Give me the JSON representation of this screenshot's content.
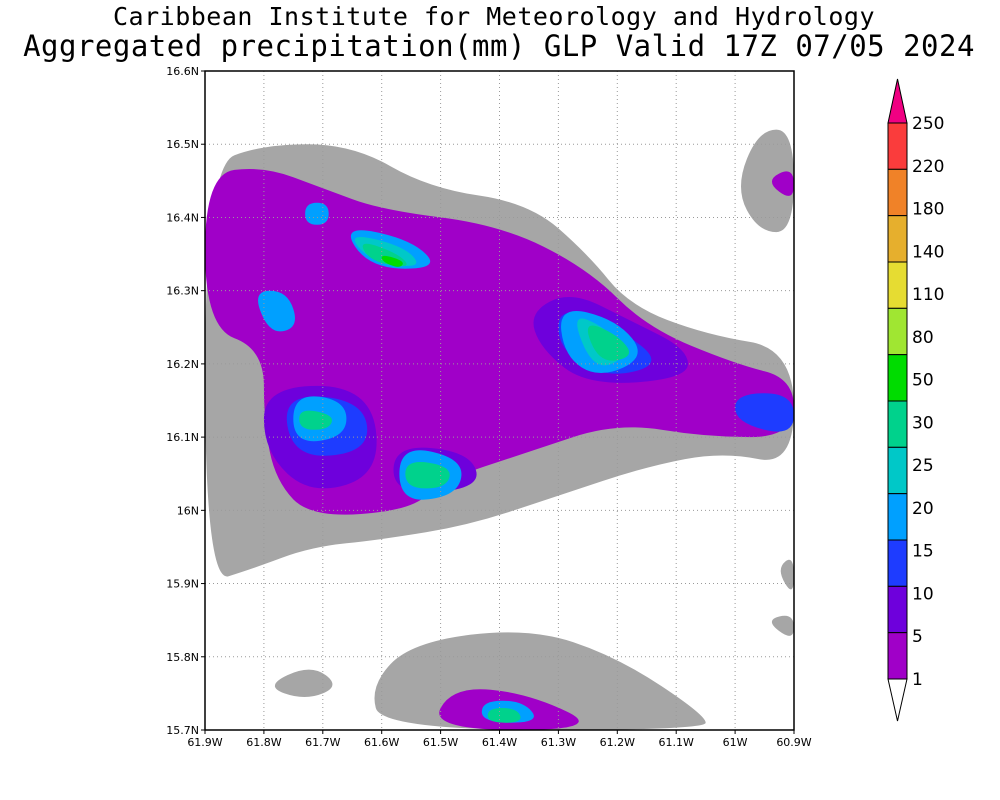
{
  "title": {
    "line1": "Caribbean Institute for Meteorology and Hydrology",
    "line2": "Aggregated precipitation(mm) GLP Valid 17Z 07/05 2024"
  },
  "map": {
    "lon_range": [
      -61.9,
      -60.9
    ],
    "lat_range": [
      15.7,
      16.6
    ],
    "x_tick_labels": [
      "61.9W",
      "61.8W",
      "61.7W",
      "61.6W",
      "61.5W",
      "61.4W",
      "61.3W",
      "61.2W",
      "61.1W",
      "61W",
      "60.9W"
    ],
    "y_tick_labels": [
      "15.7N",
      "15.8N",
      "15.9N",
      "16N",
      "16.1N",
      "16.2N",
      "16.3N",
      "16.4N",
      "16.5N",
      "16.6N"
    ],
    "grid": true
  },
  "colorbar": {
    "levels": [
      "1",
      "5",
      "10",
      "15",
      "20",
      "25",
      "30",
      "50",
      "80",
      "110",
      "140",
      "180",
      "220",
      "250"
    ],
    "colors": [
      "#a6a6a6",
      "#a000c8",
      "#6e00dc",
      "#1e3cff",
      "#00a0ff",
      "#00c8c8",
      "#00d28c",
      "#00dc00",
      "#a0e632",
      "#e6dc32",
      "#e6af2d",
      "#f08228",
      "#fa3c3c",
      "#f00082"
    ]
  },
  "precip_regions": [
    {
      "level": 1,
      "areas": [
        [
          [
            -61.9,
            16.47
          ],
          [
            -61.8,
            16.5
          ],
          [
            -61.65,
            16.5
          ],
          [
            -61.52,
            16.44
          ],
          [
            -61.35,
            16.42
          ],
          [
            -61.25,
            16.35
          ],
          [
            -61.18,
            16.28
          ],
          [
            -61.05,
            16.24
          ],
          [
            -60.9,
            16.22
          ],
          [
            -60.9,
            16.06
          ],
          [
            -61.02,
            16.08
          ],
          [
            -61.15,
            16.06
          ],
          [
            -61.3,
            16.02
          ],
          [
            -61.45,
            15.98
          ],
          [
            -61.6,
            15.96
          ],
          [
            -61.72,
            15.95
          ],
          [
            -61.82,
            15.92
          ],
          [
            -61.9,
            15.9
          ]
        ],
        [
          [
            -61.0,
            16.44
          ],
          [
            -60.96,
            16.52
          ],
          [
            -60.9,
            16.52
          ],
          [
            -60.9,
            16.38
          ],
          [
            -60.96,
            16.38
          ]
        ],
        [
          [
            -61.55,
            15.82
          ],
          [
            -61.35,
            15.84
          ],
          [
            -61.2,
            15.8
          ],
          [
            -61.05,
            15.72
          ],
          [
            -61.05,
            15.7
          ],
          [
            -61.6,
            15.7
          ],
          [
            -61.62,
            15.76
          ]
        ],
        [
          [
            -61.8,
            15.76
          ],
          [
            -61.72,
            15.79
          ],
          [
            -61.67,
            15.76
          ],
          [
            -61.73,
            15.74
          ]
        ],
        [
          [
            -60.93,
            15.92
          ],
          [
            -60.9,
            15.94
          ],
          [
            -60.9,
            15.88
          ]
        ],
        [
          [
            -60.95,
            15.85
          ],
          [
            -60.9,
            15.86
          ],
          [
            -60.9,
            15.82
          ]
        ]
      ]
    },
    {
      "level": 2,
      "areas": [
        [
          [
            -61.9,
            16.46
          ],
          [
            -61.8,
            16.47
          ],
          [
            -61.7,
            16.44
          ],
          [
            -61.6,
            16.41
          ],
          [
            -61.4,
            16.39
          ],
          [
            -61.25,
            16.33
          ],
          [
            -61.15,
            16.25
          ],
          [
            -61.0,
            16.2
          ],
          [
            -60.9,
            16.18
          ],
          [
            -60.9,
            16.1
          ],
          [
            -61.05,
            16.1
          ],
          [
            -61.2,
            16.12
          ],
          [
            -61.35,
            16.08
          ],
          [
            -61.5,
            16.04
          ],
          [
            -61.55,
            16.0
          ],
          [
            -61.72,
            15.99
          ],
          [
            -61.78,
            16.04
          ],
          [
            -61.8,
            16.12
          ],
          [
            -61.8,
            16.22
          ],
          [
            -61.9,
            16.25
          ]
        ],
        [
          [
            -61.48,
            15.76
          ],
          [
            -61.35,
            15.75
          ],
          [
            -61.22,
            15.7
          ],
          [
            -61.52,
            15.7
          ]
        ],
        [
          [
            -60.95,
            16.45
          ],
          [
            -60.9,
            16.47
          ],
          [
            -60.9,
            16.42
          ]
        ]
      ]
    },
    {
      "level": 3,
      "areas": [
        [
          [
            -61.28,
            16.3
          ],
          [
            -61.18,
            16.26
          ],
          [
            -61.08,
            16.22
          ],
          [
            -61.08,
            16.18
          ],
          [
            -61.25,
            16.17
          ],
          [
            -61.33,
            16.22
          ],
          [
            -61.35,
            16.27
          ]
        ],
        [
          [
            -61.8,
            16.17
          ],
          [
            -61.62,
            16.17
          ],
          [
            -61.6,
            16.05
          ],
          [
            -61.72,
            16.02
          ],
          [
            -61.8,
            16.08
          ]
        ],
        [
          [
            -61.58,
            16.09
          ],
          [
            -61.45,
            16.08
          ],
          [
            -61.43,
            16.03
          ],
          [
            -61.58,
            16.02
          ]
        ]
      ]
    },
    {
      "level": 4,
      "areas": [
        [
          [
            -61.0,
            16.16
          ],
          [
            -60.9,
            16.16
          ],
          [
            -60.9,
            16.1
          ],
          [
            -61.0,
            16.12
          ]
        ],
        [
          [
            -61.77,
            16.16
          ],
          [
            -61.63,
            16.15
          ],
          [
            -61.62,
            16.08
          ],
          [
            -61.75,
            16.07
          ]
        ],
        [
          [
            -61.3,
            16.28
          ],
          [
            -61.2,
            16.25
          ],
          [
            -61.12,
            16.2
          ],
          [
            -61.22,
            16.18
          ],
          [
            -61.3,
            16.22
          ]
        ]
      ]
    },
    {
      "level": 5,
      "areas": [
        [
          [
            -61.3,
            16.28
          ],
          [
            -61.2,
            16.26
          ],
          [
            -61.15,
            16.21
          ],
          [
            -61.23,
            16.18
          ],
          [
            -61.29,
            16.21
          ]
        ],
        [
          [
            -61.67,
            16.39
          ],
          [
            -61.55,
            16.37
          ],
          [
            -61.5,
            16.33
          ],
          [
            -61.62,
            16.33
          ]
        ],
        [
          [
            -61.75,
            16.16
          ],
          [
            -61.66,
            16.15
          ],
          [
            -61.66,
            16.1
          ],
          [
            -61.75,
            16.09
          ]
        ],
        [
          [
            -61.57,
            16.09
          ],
          [
            -61.46,
            16.07
          ],
          [
            -61.47,
            16.02
          ],
          [
            -61.57,
            16.01
          ]
        ],
        [
          [
            -61.82,
            16.3
          ],
          [
            -61.76,
            16.3
          ],
          [
            -61.74,
            16.25
          ],
          [
            -61.79,
            16.24
          ]
        ],
        [
          [
            -61.43,
            15.74
          ],
          [
            -61.36,
            15.74
          ],
          [
            -61.33,
            15.71
          ],
          [
            -61.43,
            15.71
          ]
        ],
        [
          [
            -61.73,
            16.42
          ],
          [
            -61.69,
            16.42
          ],
          [
            -61.69,
            16.39
          ],
          [
            -61.73,
            16.39
          ]
        ]
      ]
    },
    {
      "level": 6,
      "areas": [
        [
          [
            -61.28,
            16.27
          ],
          [
            -61.22,
            16.25
          ],
          [
            -61.18,
            16.21
          ],
          [
            -61.24,
            16.19
          ]
        ],
        [
          [
            -61.66,
            16.38
          ],
          [
            -61.56,
            16.36
          ],
          [
            -61.53,
            16.33
          ],
          [
            -61.62,
            16.34
          ]
        ]
      ]
    },
    {
      "level": 7,
      "areas": [
        [
          [
            -61.26,
            16.26
          ],
          [
            -61.2,
            16.24
          ],
          [
            -61.17,
            16.21
          ],
          [
            -61.23,
            16.2
          ]
        ],
        [
          [
            -61.64,
            16.37
          ],
          [
            -61.57,
            16.35
          ],
          [
            -61.55,
            16.33
          ],
          [
            -61.62,
            16.34
          ]
        ],
        [
          [
            -61.74,
            16.14
          ],
          [
            -61.68,
            16.13
          ],
          [
            -61.69,
            16.11
          ],
          [
            -61.74,
            16.11
          ]
        ],
        [
          [
            -61.56,
            16.07
          ],
          [
            -61.48,
            16.06
          ],
          [
            -61.49,
            16.03
          ],
          [
            -61.56,
            16.03
          ]
        ],
        [
          [
            -61.42,
            15.73
          ],
          [
            -61.37,
            15.73
          ],
          [
            -61.36,
            15.71
          ],
          [
            -61.42,
            15.71
          ]
        ]
      ]
    },
    {
      "level": 8,
      "areas": [
        [
          [
            -61.6,
            16.35
          ],
          [
            -61.56,
            16.34
          ],
          [
            -61.57,
            16.33
          ],
          [
            -61.6,
            16.34
          ]
        ]
      ]
    }
  ]
}
